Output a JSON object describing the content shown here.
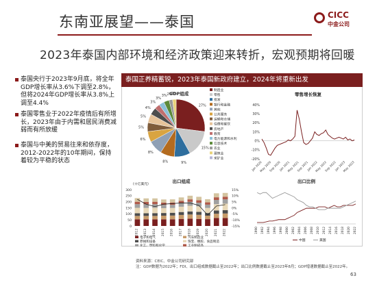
{
  "header": {
    "title": "东南亚展望——泰国",
    "logo_text": "CICC",
    "logo_sub": "中金公司"
  },
  "slide_title": "2023年泰国内部环境和经济政策迎来转折，宏观预期将回暖",
  "bullets": [
    "泰国央行于2023年9月底，将全年GDP增长率从3.6%下调至2.8%，但将2024年GDP增长率从3.8%上调至4.4%",
    "泰国零售业于2022年疫情后有所增长，2023年由于内需和居民消费减弱而有所放缓",
    "泰国与中美的贸易往来和依存度，2012-2022年的10年期间，保持着较为平稳的状态"
  ],
  "panel_header": "泰国正养精蓄锐，2023年泰国新政府建立，2024年将重新出发",
  "source_lines": [
    "资料来源：CEIC、中金公司研究部",
    "注：GDP数据为2022年；FDI、出口组成数据截止至2022年；出口比例数据截止至2023年8月；GDP增速数据截止至2022年。"
  ],
  "page_number": "63",
  "colors": {
    "accent": "#8b1a1a",
    "header_bg": "#7a1f1f"
  },
  "chart_data": [
    {
      "type": "pie",
      "title": "GDP组成",
      "labels": [
        "制造业",
        "零售",
        "批发",
        "银行和金融",
        "其他",
        "公共服务",
        "运输和仓储",
        "住宿和餐饮",
        "房地产",
        "教育",
        "电力能源和水利",
        "信息技术",
        "农业",
        "建筑业",
        "采矿业"
      ],
      "values": [
        27,
        15,
        9,
        8,
        8,
        6,
        5,
        5,
        4,
        3,
        3,
        3,
        2,
        2,
        0
      ],
      "slice_labels": [
        "27%",
        "15%",
        "9%",
        "8%",
        "8%",
        "6%",
        "5%",
        "5%",
        "4%",
        "3%",
        "3%",
        "3%",
        "2%",
        "2%",
        ""
      ],
      "colors": [
        "#7a1f1f",
        "#c9c9c9",
        "#2e6e9e",
        "#b36b1f",
        "#8fa0b5",
        "#d9a441",
        "#7f5c3b",
        "#e6c39a",
        "#4d4d4d",
        "#c06e6e",
        "#8cc0d8",
        "#5d8a3a",
        "#9a9a9a",
        "#e8d27a",
        "#b5b5d5"
      ]
    },
    {
      "type": "line",
      "title": "零售增长恢复",
      "ylim": [
        -20,
        40
      ],
      "yticks": [
        "40%",
        "30%",
        "20%",
        "10%",
        "0%",
        "-10%",
        "-20%"
      ],
      "xticks": [
        "Jan 2020",
        "May 2020",
        "Sep 2020",
        "Jan 2021",
        "May 2021",
        "Sep 2021",
        "Jan 2022",
        "May 2022",
        "Sep 2022",
        "Jan 2023",
        "May 2023"
      ],
      "series": [
        {
          "values": [
            2,
            -2,
            -8,
            -15,
            -16,
            -12,
            -8,
            -5,
            -4,
            -3,
            -2,
            -1,
            1,
            0,
            2,
            5,
            34,
            24,
            10,
            -2,
            -4,
            -3,
            0,
            3,
            10,
            7,
            6,
            8,
            9,
            12,
            7,
            5,
            3,
            2,
            3,
            4,
            3,
            2,
            4,
            1,
            2,
            0,
            1
          ]
        }
      ]
    },
    {
      "type": "bar",
      "title": "出口组成",
      "ylabel": "(十亿美元)",
      "ylim": [
        0,
        300
      ],
      "yticks": [
        "300",
        "250",
        "200",
        "150",
        "100",
        "50",
        "0"
      ],
      "y2ticks": [
        "15%",
        "10%",
        "5%",
        "0%",
        "-5%",
        "-10%",
        "-15%"
      ],
      "categories": [
        "2012",
        "2013",
        "2014",
        "2015",
        "2016",
        "2017",
        "2018",
        "2019",
        "2020",
        "2021",
        "2022"
      ],
      "legend": [
        "电子和电气",
        "汽车制造业",
        "原械和设备",
        "珠宝、橡胶、食品制造",
        "化工、塑料和化学",
        "工业制成品",
        "其他",
        "GDP同比增长率"
      ],
      "series": [
        {
          "name": "电子和电气",
          "values": [
            55,
            55,
            55,
            55,
            55,
            58,
            60,
            58,
            56,
            66,
            66
          ]
        },
        {
          "name": "汽车制造业",
          "values": [
            28,
            28,
            28,
            30,
            31,
            33,
            35,
            34,
            29,
            35,
            37
          ]
        },
        {
          "name": "原械和设备",
          "values": [
            22,
            22,
            23,
            22,
            23,
            24,
            25,
            24,
            22,
            27,
            28
          ]
        },
        {
          "name": "珠宝、橡胶、食品制造",
          "values": [
            45,
            44,
            44,
            40,
            40,
            44,
            47,
            46,
            42,
            52,
            53
          ]
        },
        {
          "name": "化工、塑料和化学",
          "values": [
            30,
            30,
            30,
            27,
            26,
            29,
            32,
            30,
            27,
            35,
            36
          ]
        },
        {
          "name": "工业制成品",
          "values": [
            20,
            20,
            20,
            19,
            19,
            20,
            21,
            20,
            19,
            22,
            22
          ]
        },
        {
          "name": "其他",
          "values": [
            30,
            29,
            28,
            26,
            26,
            28,
            30,
            29,
            26,
            33,
            31
          ]
        }
      ],
      "line": {
        "name": "GDP同比增长率",
        "values": [
          7,
          3,
          1,
          3,
          3.5,
          4,
          4,
          2,
          -6,
          1.5,
          2.6
        ]
      }
    },
    {
      "type": "line",
      "title": "出口比例",
      "xticks": [
        "1990",
        "1992",
        "1994",
        "1996",
        "1998",
        "2000",
        "2002",
        "2004",
        "2006",
        "2008",
        "2010",
        "2012",
        "2014",
        "2016",
        "2018",
        "2020",
        "2022"
      ],
      "legend": [
        "中国",
        "美国"
      ],
      "series": [
        {
          "name": "中国",
          "values": [
            1,
            1,
            1,
            1.5,
            2,
            2,
            2.5,
            3,
            3,
            3,
            4,
            5,
            6,
            8,
            9,
            10,
            11,
            11,
            11,
            11,
            12,
            12,
            12,
            11,
            12,
            13,
            12,
            12,
            13,
            13,
            13,
            13,
            14
          ]
        },
        {
          "name": "美国",
          "values": [
            22,
            21,
            22,
            22,
            20,
            18,
            19,
            20,
            21,
            22,
            21,
            20,
            19,
            17,
            16,
            15,
            13,
            12,
            12,
            11,
            10,
            10,
            10,
            11,
            11,
            11,
            11,
            11,
            12,
            13,
            14,
            15,
            16
          ]
        }
      ]
    }
  ]
}
